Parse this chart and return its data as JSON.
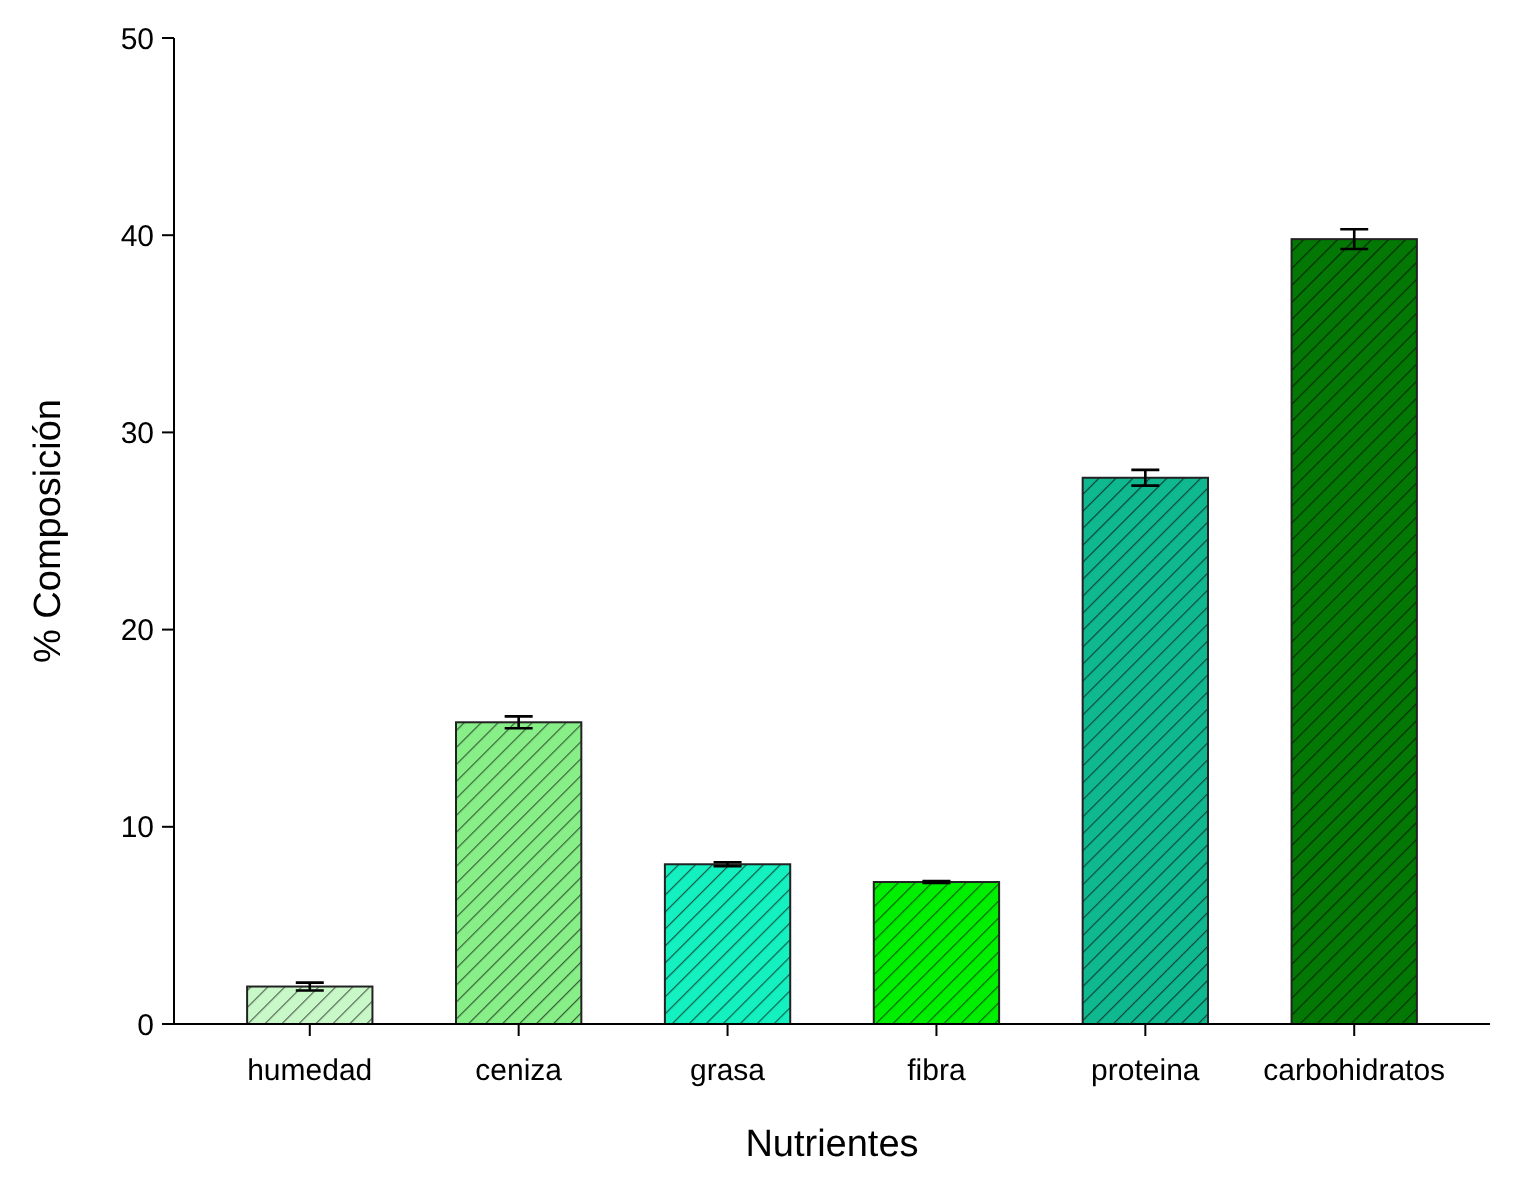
{
  "chart_data": {
    "type": "bar",
    "xlabel": "Nutrientes",
    "ylabel": "% Composición",
    "categories": [
      "humedad",
      "ceniza",
      "grasa",
      "fibra",
      "proteina",
      "carbohidratos"
    ],
    "values": [
      1.9,
      15.3,
      8.1,
      7.2,
      27.7,
      39.8
    ],
    "errors": [
      0.2,
      0.3,
      0.1,
      0.05,
      0.4,
      0.5
    ],
    "colors": [
      "#c8f8c8",
      "#88ee88",
      "#14f0c0",
      "#00ee00",
      "#10b890",
      "#047804"
    ],
    "ylim": [
      0,
      50
    ],
    "yticks": [
      0,
      10,
      20,
      30,
      40,
      50
    ],
    "grid": false
  }
}
